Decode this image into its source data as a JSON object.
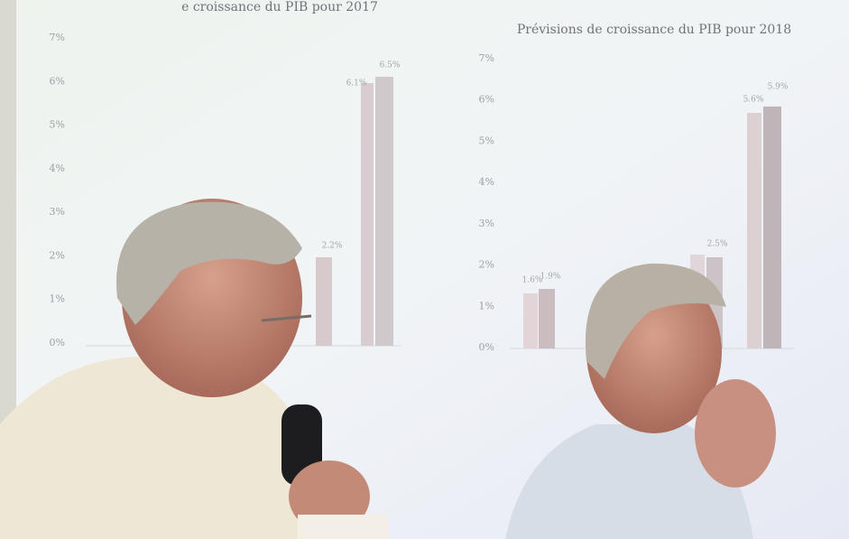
{
  "slide": {
    "left_chart": {
      "title": "e croissance du PIB pour 2017",
      "axis_labels": [
        "7%",
        "6%",
        "5%",
        "4%",
        "3%",
        "2%",
        "1%",
        "0%"
      ],
      "value_labels": [
        "2.2%",
        "6.1%",
        "6.5%"
      ]
    },
    "right_chart": {
      "title": "Prévisions de croissance du PIB pour 2018",
      "axis_labels": [
        "7%",
        "6%",
        "5%",
        "4%",
        "3%",
        "2%",
        "1%",
        "0%"
      ],
      "value_labels": [
        "1.6%",
        "1.9%",
        "2.5%",
        "5.6%",
        "5.9%"
      ]
    }
  }
}
